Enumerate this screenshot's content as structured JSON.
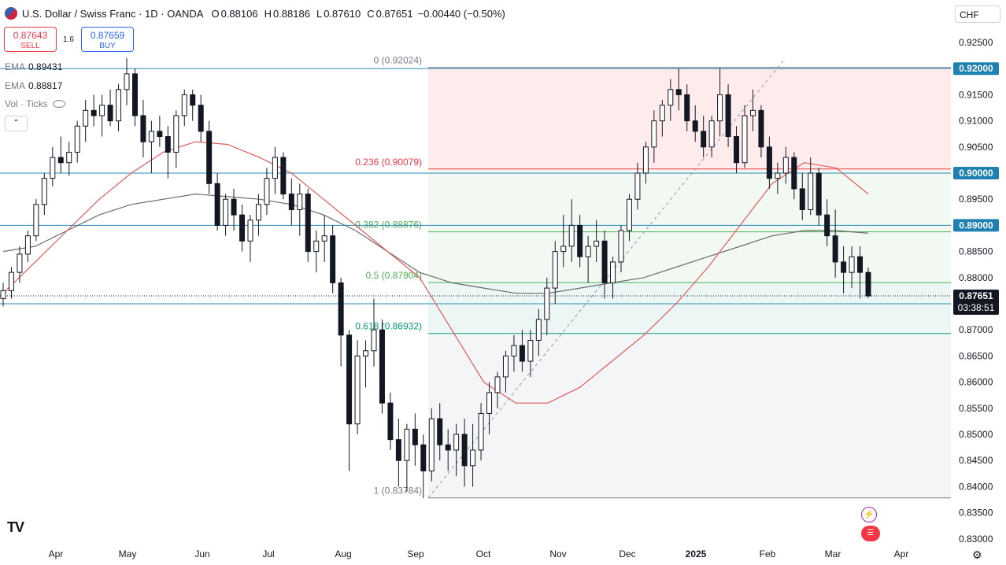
{
  "header": {
    "title": "U.S. Dollar / Swiss Franc · 1D · OANDA",
    "open_label": "O",
    "open": "0.88106",
    "high_label": "H",
    "high": "0.88186",
    "low_label": "L",
    "low": "0.87610",
    "close_label": "C",
    "close": "0.87651",
    "change": "−0.00440 (−0.50%)"
  },
  "trade": {
    "sell_price": "0.87643",
    "sell_label": "SELL",
    "spread": "1.6",
    "buy_price": "0.87659",
    "buy_label": "BUY"
  },
  "indicators": [
    {
      "name": "EMA",
      "value": "0.89431"
    },
    {
      "name": "EMA",
      "value": "0.88817"
    },
    {
      "name": "Vol · Ticks",
      "value": ""
    }
  ],
  "collapse_label": "⌃",
  "currency_label": "CHF",
  "logo_text": "TV",
  "icons": {
    "alert": "lightning-icon",
    "flag": "us-flag-icon",
    "settings": "gear-icon"
  },
  "colors": {
    "up": "#131722",
    "down": "#131722",
    "bg": "#ffffff",
    "ema_fast": "#e05a5a",
    "ema_slow": "#6b6b6b",
    "hline": "#2a8ab8",
    "price_tag": "#131722",
    "level_tag": "#1e81b0"
  },
  "chart_data": {
    "type": "candlestick",
    "symbol": "USDCHF",
    "x_axis_labels": [
      "Apr",
      "May",
      "Jun",
      "Jul",
      "Aug",
      "Sep",
      "Oct",
      "Nov",
      "Dec",
      "2025",
      "Feb",
      "Mar",
      "Apr"
    ],
    "y_axis_labels": [
      "0.92500",
      "0.92000",
      "0.91500",
      "0.91000",
      "0.90500",
      "0.90000",
      "0.89500",
      "0.89000",
      "0.88500",
      "0.88000",
      "0.87500",
      "0.87000",
      "0.86500",
      "0.86000",
      "0.85500",
      "0.85000",
      "0.84500",
      "0.84000",
      "0.83500",
      "0.83000"
    ],
    "ylim": [
      0.8295,
      0.9275
    ],
    "last_price": "0.87651",
    "countdown": "03:38:51",
    "horizontal_levels": [
      "0.92000",
      "0.90000",
      "0.89000",
      "0.87500"
    ],
    "fibonacci": {
      "levels": [
        {
          "ratio": "0",
          "price": 0.92024,
          "label": "0 (0.92024)",
          "color": "#787b86"
        },
        {
          "ratio": "0.236",
          "price": 0.90079,
          "label": "0.236 (0.90079)",
          "color": "#f23645"
        },
        {
          "ratio": "0.382",
          "price": 0.88876,
          "label": "0.382 (0.88876)",
          "color": "#4caf50"
        },
        {
          "ratio": "0.5",
          "price": 0.87904,
          "label": "0.5 (0.87904)",
          "color": "#4caf50"
        },
        {
          "ratio": "0.618",
          "price": 0.86932,
          "label": "0.618 (0.86932)",
          "color": "#089981"
        },
        {
          "ratio": "1",
          "price": 0.83784,
          "label": "1 (0.83784)",
          "color": "#787b86"
        }
      ]
    },
    "ohlc_sample_note": "",
    "candles": [
      [
        0.876,
        0.879,
        0.8745,
        0.8775
      ],
      [
        0.8775,
        0.882,
        0.876,
        0.881
      ],
      [
        0.881,
        0.886,
        0.879,
        0.8845
      ],
      [
        0.8845,
        0.889,
        0.883,
        0.888
      ],
      [
        0.888,
        0.895,
        0.887,
        0.894
      ],
      [
        0.894,
        0.9,
        0.892,
        0.899
      ],
      [
        0.899,
        0.905,
        0.8975,
        0.903
      ],
      [
        0.903,
        0.907,
        0.9,
        0.902
      ],
      [
        0.902,
        0.906,
        0.8995,
        0.904
      ],
      [
        0.904,
        0.91,
        0.902,
        0.909
      ],
      [
        0.909,
        0.914,
        0.906,
        0.912
      ],
      [
        0.912,
        0.915,
        0.909,
        0.911
      ],
      [
        0.911,
        0.915,
        0.907,
        0.913
      ],
      [
        0.913,
        0.916,
        0.909,
        0.91
      ],
      [
        0.91,
        0.917,
        0.908,
        0.916
      ],
      [
        0.916,
        0.922,
        0.913,
        0.919
      ],
      [
        0.919,
        0.92,
        0.909,
        0.911
      ],
      [
        0.911,
        0.914,
        0.903,
        0.906
      ],
      [
        0.906,
        0.91,
        0.9,
        0.908
      ],
      [
        0.908,
        0.911,
        0.905,
        0.907
      ],
      [
        0.907,
        0.909,
        0.899,
        0.904
      ],
      [
        0.904,
        0.912,
        0.901,
        0.911
      ],
      [
        0.911,
        0.916,
        0.909,
        0.915
      ],
      [
        0.915,
        0.916,
        0.91,
        0.913
      ],
      [
        0.913,
        0.915,
        0.906,
        0.908
      ],
      [
        0.908,
        0.91,
        0.896,
        0.898
      ],
      [
        0.898,
        0.9,
        0.889,
        0.89
      ],
      [
        0.89,
        0.896,
        0.888,
        0.895
      ],
      [
        0.895,
        0.897,
        0.889,
        0.892
      ],
      [
        0.892,
        0.894,
        0.885,
        0.887
      ],
      [
        0.887,
        0.892,
        0.883,
        0.891
      ],
      [
        0.891,
        0.896,
        0.888,
        0.894
      ],
      [
        0.894,
        0.901,
        0.892,
        0.899
      ],
      [
        0.899,
        0.905,
        0.896,
        0.903
      ],
      [
        0.903,
        0.904,
        0.895,
        0.896
      ],
      [
        0.896,
        0.899,
        0.89,
        0.893
      ],
      [
        0.893,
        0.898,
        0.888,
        0.896
      ],
      [
        0.896,
        0.897,
        0.883,
        0.885
      ],
      [
        0.885,
        0.889,
        0.881,
        0.887
      ],
      [
        0.887,
        0.892,
        0.883,
        0.888
      ],
      [
        0.888,
        0.89,
        0.877,
        0.879
      ],
      [
        0.879,
        0.88,
        0.863,
        0.869
      ],
      [
        0.869,
        0.87,
        0.843,
        0.852
      ],
      [
        0.852,
        0.868,
        0.85,
        0.865
      ],
      [
        0.865,
        0.868,
        0.859,
        0.866
      ],
      [
        0.866,
        0.876,
        0.863,
        0.87
      ],
      [
        0.87,
        0.872,
        0.854,
        0.856
      ],
      [
        0.856,
        0.858,
        0.847,
        0.849
      ],
      [
        0.849,
        0.853,
        0.84,
        0.845
      ],
      [
        0.845,
        0.852,
        0.839,
        0.851
      ],
      [
        0.851,
        0.854,
        0.844,
        0.848
      ],
      [
        0.848,
        0.85,
        0.8378,
        0.843
      ],
      [
        0.843,
        0.855,
        0.841,
        0.853
      ],
      [
        0.853,
        0.856,
        0.845,
        0.848
      ],
      [
        0.848,
        0.851,
        0.843,
        0.847
      ],
      [
        0.847,
        0.852,
        0.842,
        0.85
      ],
      [
        0.85,
        0.853,
        0.84,
        0.844
      ],
      [
        0.844,
        0.852,
        0.84,
        0.847
      ],
      [
        0.847,
        0.856,
        0.845,
        0.854
      ],
      [
        0.854,
        0.86,
        0.85,
        0.858
      ],
      [
        0.858,
        0.862,
        0.855,
        0.861
      ],
      [
        0.861,
        0.866,
        0.858,
        0.865
      ],
      [
        0.865,
        0.869,
        0.862,
        0.867
      ],
      [
        0.867,
        0.87,
        0.862,
        0.864
      ],
      [
        0.864,
        0.87,
        0.861,
        0.868
      ],
      [
        0.868,
        0.874,
        0.865,
        0.872
      ],
      [
        0.872,
        0.88,
        0.869,
        0.878
      ],
      [
        0.878,
        0.887,
        0.875,
        0.885
      ],
      [
        0.885,
        0.892,
        0.882,
        0.886
      ],
      [
        0.886,
        0.895,
        0.883,
        0.89
      ],
      [
        0.89,
        0.892,
        0.882,
        0.884
      ],
      [
        0.884,
        0.888,
        0.879,
        0.886
      ],
      [
        0.886,
        0.891,
        0.883,
        0.887
      ],
      [
        0.887,
        0.889,
        0.876,
        0.879
      ],
      [
        0.879,
        0.884,
        0.876,
        0.883
      ],
      [
        0.883,
        0.89,
        0.881,
        0.889
      ],
      [
        0.889,
        0.896,
        0.887,
        0.895
      ],
      [
        0.895,
        0.902,
        0.893,
        0.9
      ],
      [
        0.9,
        0.906,
        0.898,
        0.905
      ],
      [
        0.905,
        0.912,
        0.902,
        0.91
      ],
      [
        0.91,
        0.914,
        0.907,
        0.913
      ],
      [
        0.913,
        0.918,
        0.91,
        0.916
      ],
      [
        0.916,
        0.92,
        0.912,
        0.915
      ],
      [
        0.915,
        0.917,
        0.908,
        0.91
      ],
      [
        0.91,
        0.913,
        0.906,
        0.908
      ],
      [
        0.908,
        0.911,
        0.903,
        0.905
      ],
      [
        0.905,
        0.911,
        0.903,
        0.91
      ],
      [
        0.91,
        0.92,
        0.907,
        0.915
      ],
      [
        0.915,
        0.917,
        0.905,
        0.907
      ],
      [
        0.907,
        0.909,
        0.9,
        0.902
      ],
      [
        0.902,
        0.913,
        0.901,
        0.911
      ],
      [
        0.911,
        0.916,
        0.908,
        0.912
      ],
      [
        0.912,
        0.913,
        0.903,
        0.905
      ],
      [
        0.905,
        0.907,
        0.897,
        0.899
      ],
      [
        0.899,
        0.902,
        0.896,
        0.9
      ],
      [
        0.9,
        0.905,
        0.898,
        0.903
      ],
      [
        0.903,
        0.904,
        0.895,
        0.897
      ],
      [
        0.897,
        0.9,
        0.891,
        0.893
      ],
      [
        0.893,
        0.903,
        0.892,
        0.9
      ],
      [
        0.9,
        0.901,
        0.89,
        0.892
      ],
      [
        0.892,
        0.895,
        0.886,
        0.888
      ],
      [
        0.888,
        0.893,
        0.88,
        0.883
      ],
      [
        0.883,
        0.886,
        0.877,
        0.881
      ],
      [
        0.881,
        0.886,
        0.878,
        0.884
      ],
      [
        0.884,
        0.886,
        0.876,
        0.881
      ],
      [
        0.881,
        0.8819,
        0.8761,
        0.8765
      ]
    ],
    "ema_fast": [
      0.877,
      0.883,
      0.889,
      0.895,
      0.9,
      0.904,
      0.906,
      0.9055,
      0.903,
      0.9,
      0.895,
      0.89,
      0.885,
      0.88,
      0.87,
      0.86,
      0.856,
      0.856,
      0.859,
      0.864,
      0.869,
      0.875,
      0.882,
      0.89,
      0.898,
      0.902,
      0.901,
      0.896
    ],
    "ema_slow": [
      0.885,
      0.886,
      0.889,
      0.892,
      0.894,
      0.895,
      0.896,
      0.8955,
      0.895,
      0.894,
      0.892,
      0.889,
      0.885,
      0.881,
      0.879,
      0.878,
      0.877,
      0.877,
      0.878,
      0.879,
      0.88,
      0.882,
      0.884,
      0.886,
      0.888,
      0.889,
      0.889,
      0.8885
    ]
  }
}
